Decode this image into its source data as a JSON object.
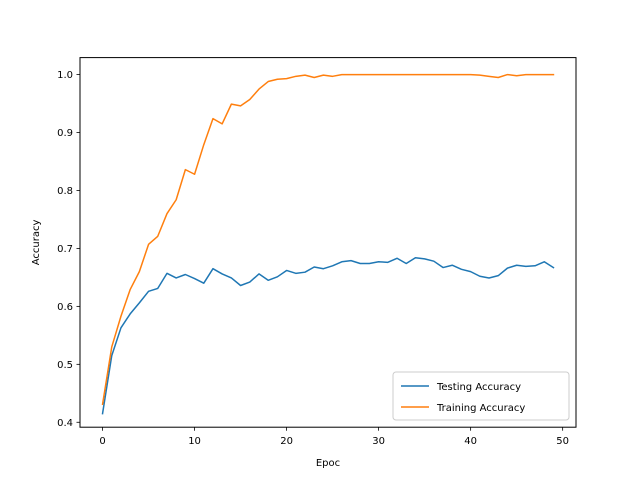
{
  "chart_data": {
    "type": "line",
    "title": "",
    "xlabel": "Epoc",
    "ylabel": "Accuracy",
    "xlim": [
      -2.45,
      51.45
    ],
    "ylim": [
      0.3915,
      1.0293
    ],
    "xticks": [
      0,
      10,
      20,
      30,
      40,
      50
    ],
    "yticks": [
      0.4,
      0.5,
      0.6,
      0.7,
      0.8,
      0.9,
      1.0
    ],
    "xtick_labels": [
      "0",
      "10",
      "20",
      "30",
      "40",
      "50"
    ],
    "ytick_labels": [
      "0.4",
      "0.5",
      "0.6",
      "0.7",
      "0.8",
      "0.9",
      "1.0"
    ],
    "grid": false,
    "legend_position": "bottom-right",
    "x": [
      0,
      1,
      2,
      3,
      4,
      5,
      6,
      7,
      8,
      9,
      10,
      11,
      12,
      13,
      14,
      15,
      16,
      17,
      18,
      19,
      20,
      21,
      22,
      23,
      24,
      25,
      26,
      27,
      28,
      29,
      30,
      31,
      32,
      33,
      34,
      35,
      36,
      37,
      38,
      39,
      40,
      41,
      42,
      43,
      44,
      45,
      46,
      47,
      48,
      49
    ],
    "series": [
      {
        "name": "Testing Accuracy",
        "color": "#1f77b4",
        "values": [
          0.415,
          0.515,
          0.563,
          0.587,
          0.606,
          0.626,
          0.631,
          0.657,
          0.649,
          0.655,
          0.648,
          0.64,
          0.665,
          0.656,
          0.649,
          0.636,
          0.642,
          0.656,
          0.645,
          0.651,
          0.662,
          0.657,
          0.659,
          0.668,
          0.665,
          0.67,
          0.677,
          0.679,
          0.674,
          0.674,
          0.677,
          0.676,
          0.683,
          0.674,
          0.684,
          0.682,
          0.678,
          0.667,
          0.671,
          0.664,
          0.66,
          0.652,
          0.649,
          0.653,
          0.666,
          0.671,
          0.669,
          0.67,
          0.677,
          0.667
        ]
      },
      {
        "name": "Training Accuracy",
        "color": "#ff7f0e",
        "values": [
          0.431,
          0.53,
          0.583,
          0.629,
          0.66,
          0.707,
          0.721,
          0.76,
          0.784,
          0.836,
          0.828,
          0.879,
          0.924,
          0.915,
          0.949,
          0.946,
          0.957,
          0.975,
          0.988,
          0.992,
          0.993,
          0.997,
          0.999,
          0.995,
          0.999,
          0.997,
          1.0,
          1.0,
          1.0,
          1.0,
          1.0,
          1.0,
          1.0,
          1.0,
          1.0,
          1.0,
          1.0,
          1.0,
          1.0,
          1.0,
          1.0,
          0.999,
          0.997,
          0.995,
          1.0,
          0.998,
          1.0,
          1.0,
          1.0,
          1.0
        ]
      }
    ]
  }
}
